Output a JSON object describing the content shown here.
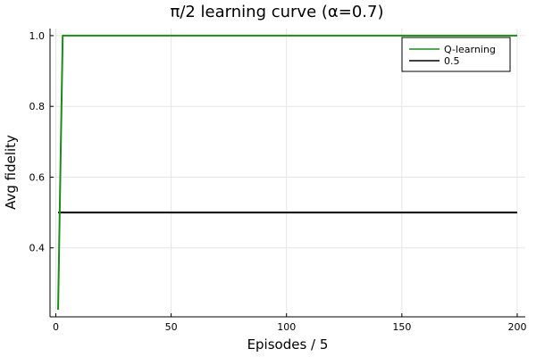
{
  "chart_data": {
    "type": "line",
    "title": "π/2 learning curve (α=0.7)",
    "xlabel": "Episodes / 5",
    "ylabel": "Avg fidelity",
    "xlim": [
      -2.5,
      203.5
    ],
    "ylim": [
      0.205,
      1.02
    ],
    "xticks": [
      0,
      50,
      100,
      150,
      200
    ],
    "yticks": [
      0.4,
      0.6,
      0.8,
      1.0
    ],
    "xtick_labels": [
      "0",
      "50",
      "100",
      "150",
      "200"
    ],
    "ytick_labels": [
      "0.4",
      "0.6",
      "0.8",
      "1.0"
    ],
    "grid": true,
    "legend_position": "top-right",
    "series": [
      {
        "name": "Q-learning",
        "color": "#1a8c1a",
        "x": [
          1,
          2,
          3,
          4,
          200
        ],
        "y": [
          0.225,
          0.62,
          1.0,
          1.0,
          1.0
        ]
      },
      {
        "name": "0.5",
        "color": "#000000",
        "x": [
          1,
          200
        ],
        "y": [
          0.5,
          0.5
        ]
      }
    ]
  }
}
